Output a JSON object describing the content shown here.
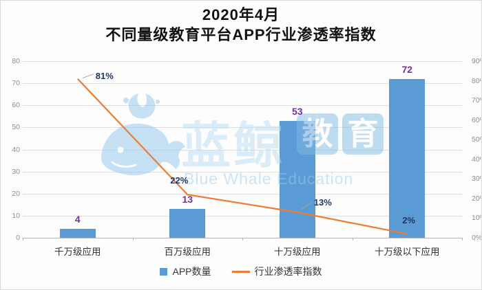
{
  "title": {
    "line1": "2020年4月",
    "line2": "不同量级教育平台APP行业渗透率指数"
  },
  "chart_data": {
    "type": "combo-bar-line",
    "categories": [
      "千万级应用",
      "百万级应用",
      "十万级应用",
      "十万级以下应用"
    ],
    "series": [
      {
        "name": "APP数量",
        "type": "bar",
        "axis": "left",
        "color": "#5B9BD5",
        "values": [
          4,
          13,
          53,
          72
        ],
        "labels": [
          "4",
          "13",
          "53",
          "72"
        ],
        "label_color": "#7030A0"
      },
      {
        "name": "行业渗透率指数",
        "type": "line",
        "axis": "right",
        "color": "#ED7D31",
        "values": [
          81,
          22,
          13,
          2
        ],
        "labels": [
          "81%",
          "22%",
          "13%",
          "2%"
        ],
        "label_color": "#1F3864"
      }
    ],
    "left_axis": {
      "min": 0,
      "max": 80,
      "step": 10,
      "ticks": [
        "0",
        "10",
        "20",
        "30",
        "40",
        "50",
        "60",
        "70",
        "80"
      ]
    },
    "right_axis": {
      "min": 0,
      "max": 90,
      "step": 10,
      "ticks": [
        "0%",
        "10%",
        "20%",
        "30%",
        "40%",
        "50%",
        "60%",
        "70%",
        "80%",
        "90%"
      ]
    },
    "grid": true,
    "legend_position": "bottom"
  },
  "legend": {
    "items": [
      {
        "label": "APP数量",
        "marker": "square",
        "color": "#5B9BD5"
      },
      {
        "label": "行业渗透率指数",
        "marker": "line",
        "color": "#ED7D31"
      }
    ]
  },
  "watermark": {
    "cn": "蓝鲸",
    "badge1": "教",
    "badge2": "育",
    "en": "Blue Whale Education"
  }
}
